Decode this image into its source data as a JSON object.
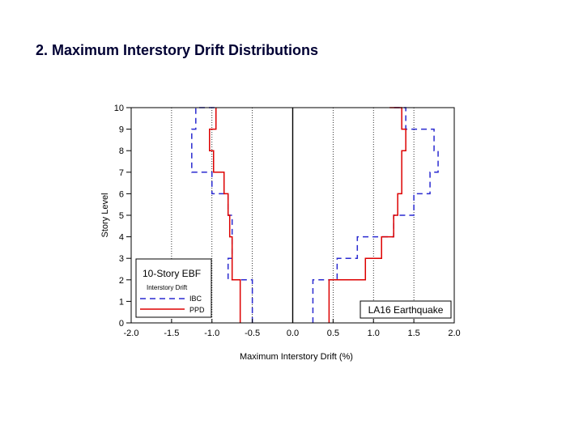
{
  "page": {
    "title": "2. Maximum Interstory Drift Distributions"
  },
  "chart_data": {
    "type": "line",
    "xlabel": "Maximum Interstory Drift (%)",
    "ylabel": "Story Level",
    "xlim": [
      -2.0,
      2.0
    ],
    "ylim": [
      0,
      10
    ],
    "xticks": [
      "-2.0",
      "-1.5",
      "-1.0",
      "-0.5",
      "0.0",
      "0.5",
      "1.0",
      "1.5",
      "2.0"
    ],
    "yticks": [
      "0",
      "1",
      "2",
      "3",
      "4",
      "5",
      "6",
      "7",
      "8",
      "9",
      "10"
    ],
    "vertical_dotted_lines": [
      -1.5,
      -1.0,
      -0.5,
      0.5,
      1.0,
      1.5
    ],
    "zero_line": 0.0,
    "legend": {
      "title": "10-Story EBF",
      "subtitle": "Interstory Drift",
      "placement": "bottom-left",
      "items": [
        "IBC",
        "PPD"
      ]
    },
    "annotation": "LA16 Earthquake",
    "series": [
      {
        "name": "IBC",
        "style": "dashed",
        "color": "#2a2ad0",
        "left": [
          -0.5,
          -0.5,
          -0.8,
          -0.75,
          -0.75,
          -0.8,
          -1.0,
          -1.25,
          -1.25,
          -1.2,
          -0.95
        ],
        "right": [
          0.25,
          0.25,
          0.55,
          0.8,
          1.25,
          1.5,
          1.7,
          1.8,
          1.75,
          1.4,
          1.25
        ]
      },
      {
        "name": "PPD",
        "style": "solid",
        "color": "#dd0000",
        "left": [
          -0.65,
          -0.65,
          -0.75,
          -0.75,
          -0.78,
          -0.8,
          -0.85,
          -0.98,
          -1.03,
          -0.95,
          -0.95
        ],
        "right": [
          0.45,
          0.45,
          0.9,
          1.1,
          1.25,
          1.3,
          1.35,
          1.35,
          1.4,
          1.35,
          1.2
        ]
      }
    ]
  }
}
